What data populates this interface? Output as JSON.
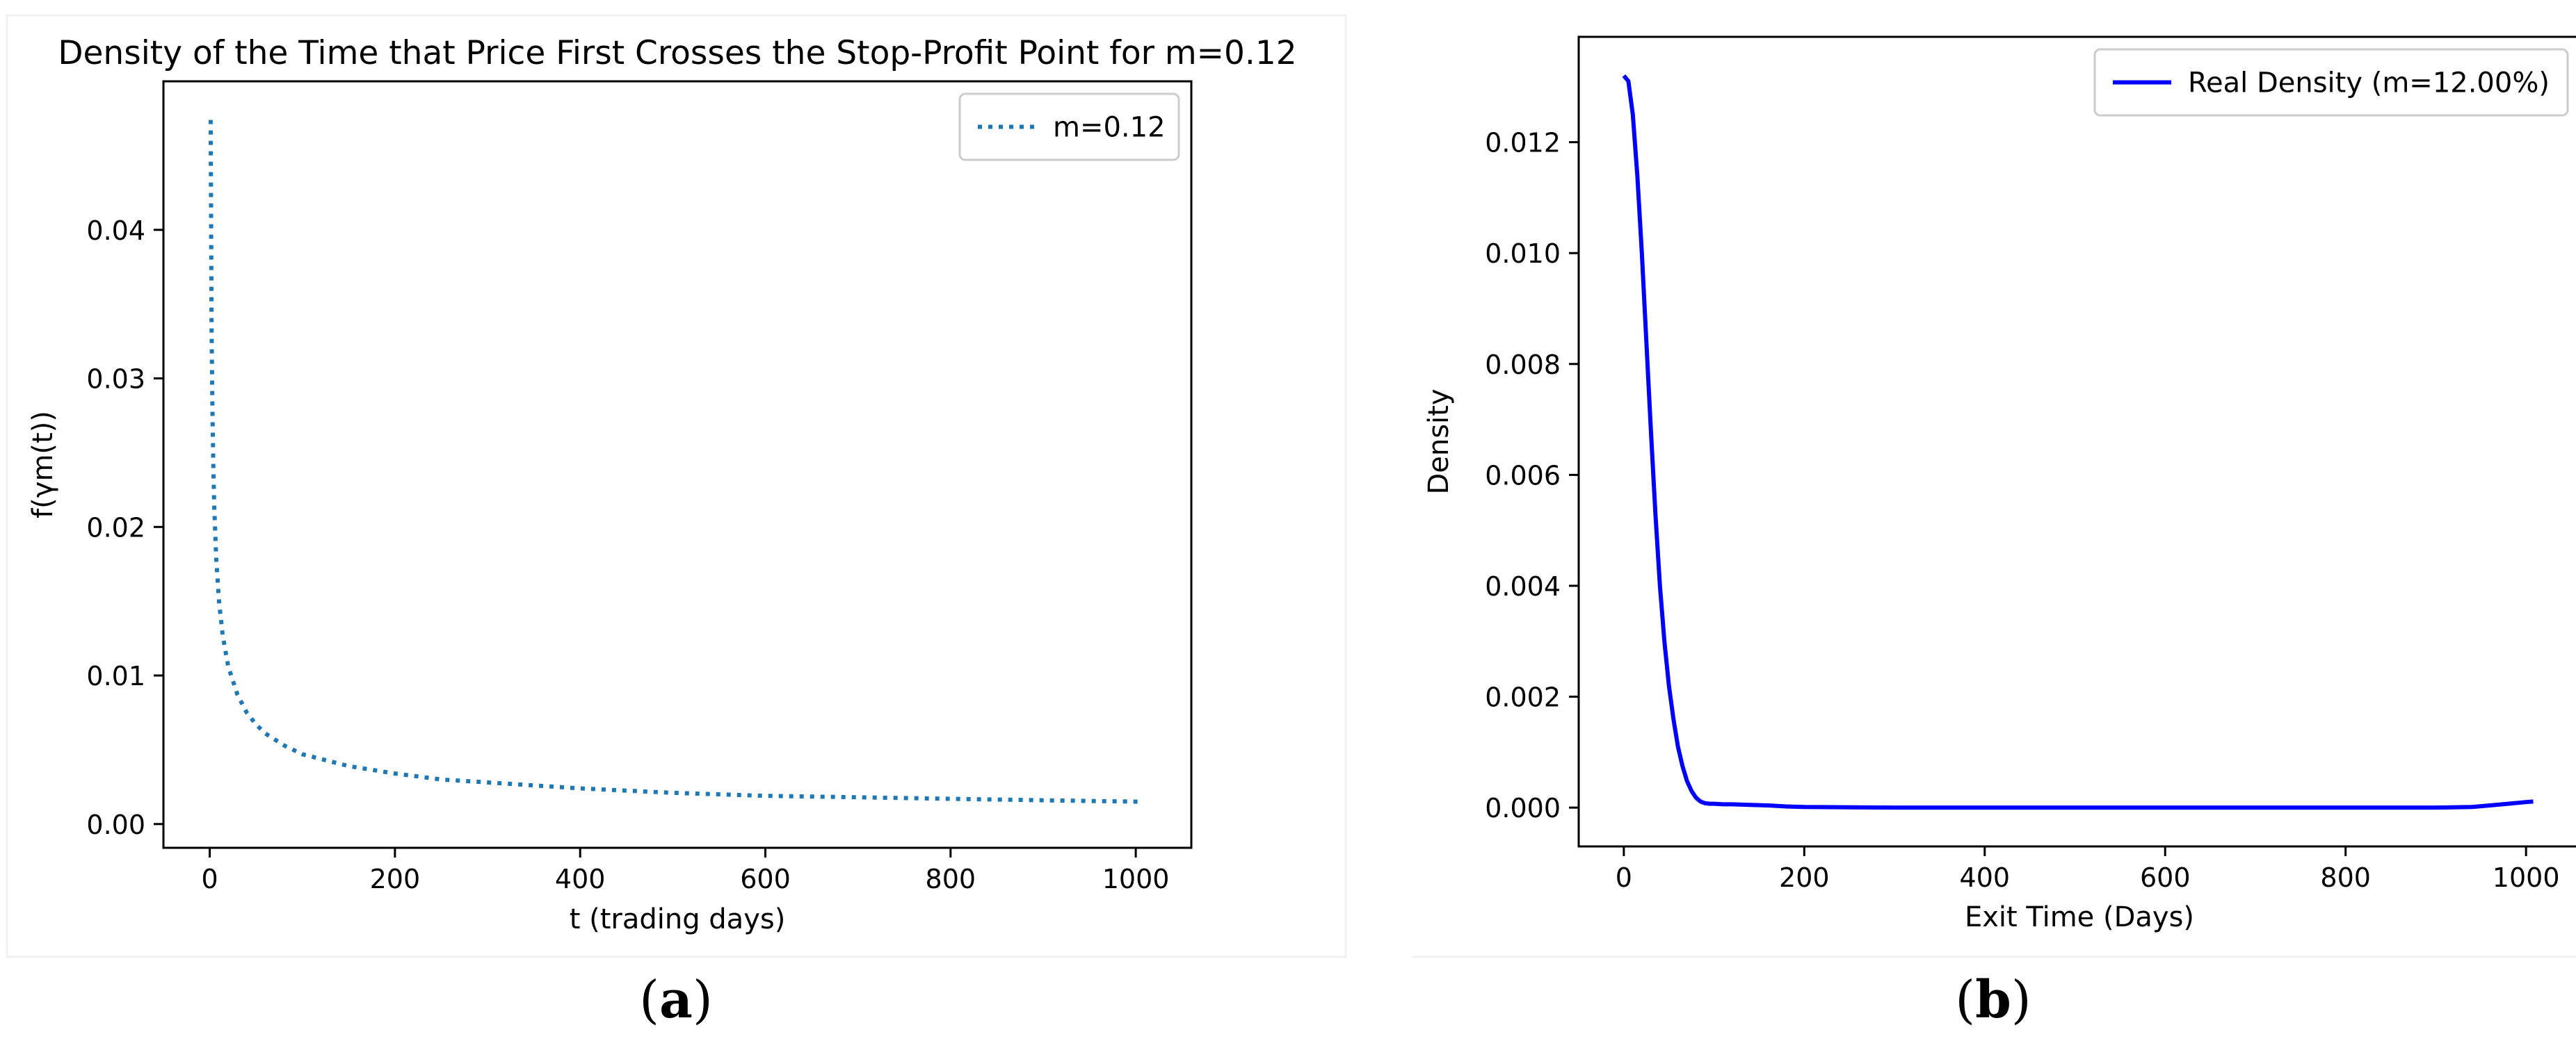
{
  "chart_data": [
    {
      "panel_label": "a",
      "type": "line",
      "title": "Density of the Time that Price First Crosses the Stop-Profit Point for m=0.12",
      "xlabel": "t (trading days)",
      "ylabel": "f(γm(t))",
      "xlim": [
        -50,
        1060
      ],
      "ylim": [
        -0.0016,
        0.05
      ],
      "xticks": [
        0,
        200,
        400,
        600,
        800,
        1000
      ],
      "xtick_labels": [
        "0",
        "200",
        "400",
        "600",
        "800",
        "1000"
      ],
      "yticks": [
        0.0,
        0.01,
        0.02,
        0.03,
        0.04
      ],
      "ytick_labels": [
        "0.00",
        "0.01",
        "0.02",
        "0.03",
        "0.04"
      ],
      "grid": false,
      "legend_position": "top-right",
      "series": [
        {
          "name": "m=0.12",
          "color": "#1f77b4",
          "line_style": "dotted",
          "x": [
            1,
            2,
            3,
            4,
            5,
            7,
            10,
            14,
            20,
            30,
            40,
            50,
            60,
            80,
            100,
            150,
            200,
            250,
            300,
            400,
            500,
            600,
            700,
            800,
            900,
            1008
          ],
          "y": [
            0.0474,
            0.0335,
            0.0274,
            0.0237,
            0.0212,
            0.0179,
            0.015,
            0.0127,
            0.0106,
            0.0087,
            0.0075,
            0.0067,
            0.0061,
            0.0053,
            0.0047,
            0.0039,
            0.0034,
            0.003,
            0.0028,
            0.0024,
            0.0021,
            0.0019,
            0.0018,
            0.0017,
            0.0016,
            0.0015
          ]
        }
      ]
    },
    {
      "panel_label": "b",
      "type": "line",
      "title": "",
      "xlabel": "Exit Time (Days)",
      "ylabel": "Density",
      "xlim": [
        -50,
        1060
      ],
      "ylim": [
        -0.0007,
        0.0139
      ],
      "xticks": [
        0,
        200,
        400,
        600,
        800,
        1000
      ],
      "xtick_labels": [
        "0",
        "200",
        "400",
        "600",
        "800",
        "1000"
      ],
      "yticks": [
        0.0,
        0.002,
        0.004,
        0.006,
        0.008,
        0.01,
        0.012
      ],
      "ytick_labels": [
        "0.000",
        "0.002",
        "0.004",
        "0.006",
        "0.008",
        "0.010",
        "0.012"
      ],
      "grid": false,
      "legend_position": "top-right",
      "series": [
        {
          "name": "Real Density (m=12.00%)",
          "color": "#0000ff",
          "line_style": "solid",
          "x": [
            0,
            5,
            10,
            15,
            20,
            25,
            30,
            35,
            40,
            45,
            50,
            55,
            60,
            65,
            70,
            75,
            80,
            85,
            90,
            95,
            100,
            110,
            120,
            140,
            160,
            180,
            200,
            300,
            400,
            500,
            600,
            700,
            800,
            900,
            940,
            960,
            980,
            1000,
            1008
          ],
          "y": [
            0.0132,
            0.0131,
            0.0125,
            0.0114,
            0.01,
            0.0084,
            0.0068,
            0.0053,
            0.004,
            0.003,
            0.0022,
            0.0016,
            0.0011,
            0.00075,
            0.00048,
            0.0003,
            0.00018,
            0.00011,
            8e-05,
            7e-05,
            7e-05,
            6e-05,
            6e-05,
            5e-05,
            4e-05,
            2e-05,
            1e-05,
            0.0,
            0.0,
            0.0,
            0.0,
            0.0,
            0.0,
            0.0,
            1e-05,
            4e-05,
            7e-05,
            0.0001,
            0.00011
          ]
        }
      ]
    }
  ]
}
